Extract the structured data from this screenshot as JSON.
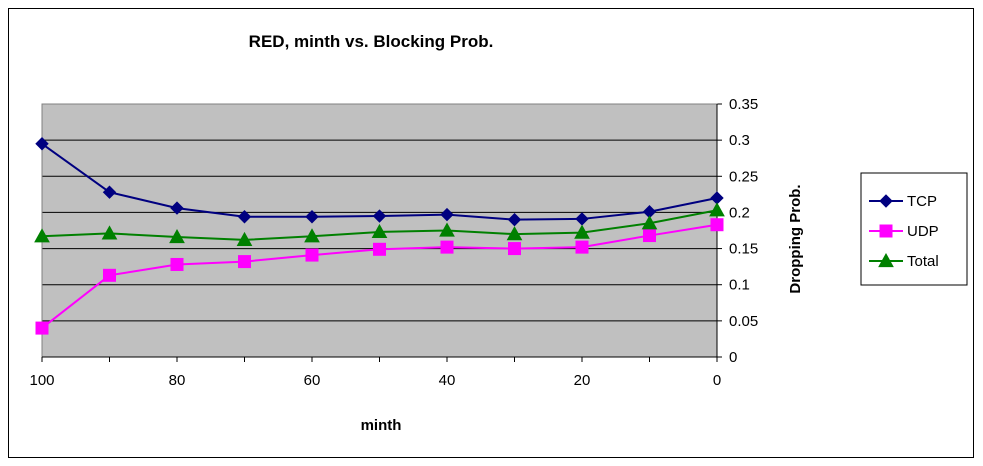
{
  "chart_data": {
    "type": "line",
    "title": "RED, minth vs. Blocking Prob.",
    "xlabel": "minth",
    "ylabel": "Dropping Prob.",
    "x": [
      100,
      90,
      80,
      70,
      60,
      50,
      40,
      30,
      20,
      10,
      0
    ],
    "x_ticks": [
      "100",
      "80",
      "60",
      "40",
      "20",
      "0"
    ],
    "x_tick_values": [
      100,
      80,
      60,
      40,
      20,
      0
    ],
    "xlim": [
      100,
      0
    ],
    "x_reversed": true,
    "y_ticks": [
      "0",
      "0.05",
      "0.1",
      "0.15",
      "0.2",
      "0.25",
      "0.3",
      "0.35"
    ],
    "y_tick_values": [
      0,
      0.05,
      0.1,
      0.15,
      0.2,
      0.25,
      0.3,
      0.35
    ],
    "ylim": [
      0,
      0.35
    ],
    "y_axis_side": "right",
    "grid": true,
    "plot_background": "#c0c0c0",
    "legend_position": "right",
    "series": [
      {
        "name": "TCP",
        "color": "#000080",
        "marker": "diamond",
        "values": [
          0.295,
          0.228,
          0.206,
          0.194,
          0.194,
          0.195,
          0.197,
          0.19,
          0.191,
          0.201,
          0.22
        ]
      },
      {
        "name": "UDP",
        "color": "#ff00ff",
        "marker": "square",
        "values": [
          0.04,
          0.113,
          0.128,
          0.132,
          0.141,
          0.149,
          0.152,
          0.15,
          0.152,
          0.168,
          0.183
        ]
      },
      {
        "name": "Total",
        "color": "#008000",
        "marker": "triangle",
        "values": [
          0.167,
          0.171,
          0.166,
          0.162,
          0.167,
          0.173,
          0.175,
          0.17,
          0.172,
          0.185,
          0.203
        ]
      }
    ]
  }
}
